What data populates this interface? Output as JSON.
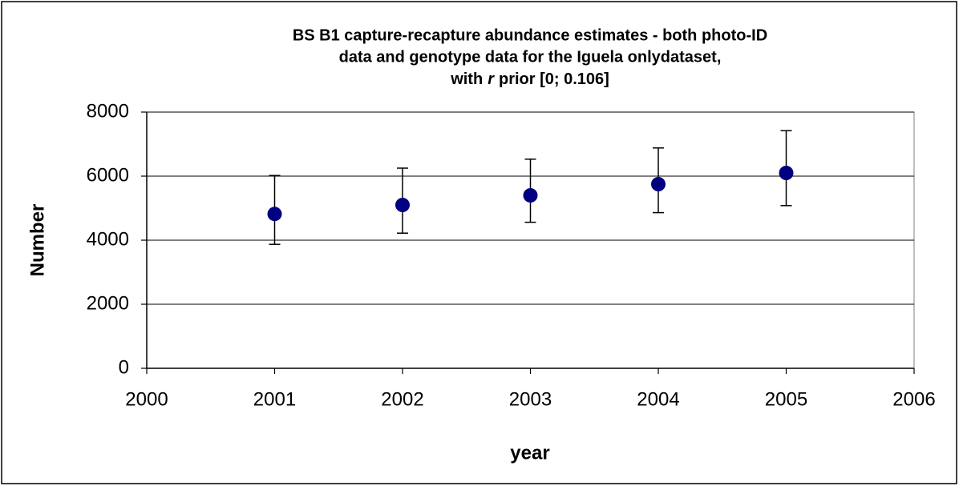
{
  "chart_data": {
    "type": "scatter",
    "title_lines": [
      "BS B1 capture-recapture abundance estimates - both photo-ID",
      "data and genotype data for the Iguela onlydataset,",
      [
        "with",
        "r",
        "prior [0; 0.106]"
      ]
    ],
    "x_label": "year",
    "y_label": "Number",
    "series": [
      {
        "color": "#000080",
        "x": [
          2001,
          2002,
          2003,
          2004,
          2005
        ],
        "values": [
          4820,
          5100,
          5400,
          5750,
          6100
        ],
        "error_plus": [
          1200,
          1150,
          1130,
          1130,
          1320
        ],
        "error_minus": [
          950,
          880,
          840,
          890,
          1020
        ]
      }
    ],
    "xlim": [
      2000,
      2006
    ],
    "xticks": [
      2000,
      2001,
      2002,
      2003,
      2004,
      2005,
      2006
    ],
    "ylim": [
      0,
      8000
    ],
    "yticks": [
      0,
      2000,
      4000,
      6000,
      8000
    ],
    "grid": true
  }
}
